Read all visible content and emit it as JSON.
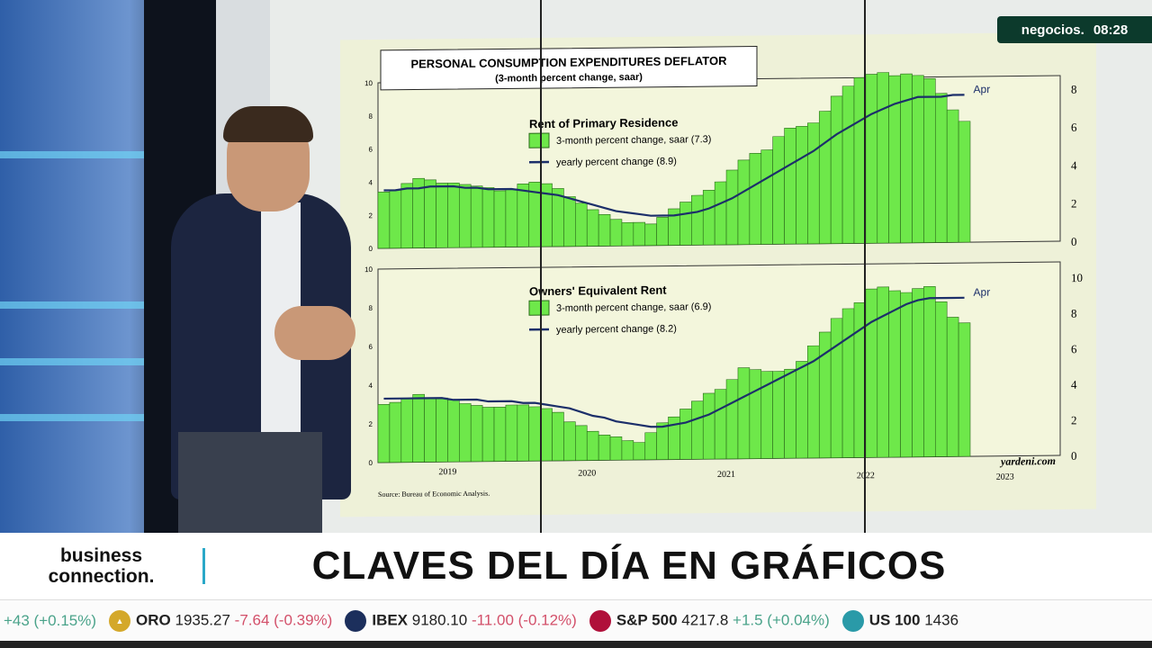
{
  "logo": {
    "channel": "negocios.",
    "time": "08:28"
  },
  "lower_third": {
    "brand_line1": "business",
    "brand_line2": "connection.",
    "headline": "CLAVES DEL DÍA EN GRÁFICOS"
  },
  "ticker": [
    {
      "name": "",
      "value": "",
      "change": "+43 (+0.15%)",
      "direction": "up",
      "icon": "",
      "color": ""
    },
    {
      "name": "ORO",
      "value": "1935.27",
      "change": "-7.64 (-0.39%)",
      "direction": "down",
      "icon": "gold-icon",
      "color": "#d4a82a"
    },
    {
      "name": "IBEX",
      "value": "9180.10",
      "change": "-11.00 (-0.12%)",
      "direction": "down",
      "icon": "35",
      "color": "#1c2f5c"
    },
    {
      "name": "S&P 500",
      "value": "4217.8",
      "change": "+1.5 (+0.04%)",
      "direction": "up",
      "icon": "500",
      "color": "#b0103a"
    },
    {
      "name": "US 100",
      "value": "1436",
      "change": "",
      "direction": "",
      "icon": "100",
      "color": "#2a9aa8"
    }
  ],
  "chart_data": [
    {
      "type": "bar",
      "title": "PERSONAL CONSUMPTION EXPENDITURES DEFLATOR",
      "subtitle": "(3-month percent change, saar)",
      "panel_title": "Rent of Primary Residence",
      "legend": [
        "3-month percent change, saar (7.3)",
        "yearly percent change (8.9)"
      ],
      "end_label": "Apr",
      "ylim": [
        0,
        10
      ],
      "left_ticks": [
        "0",
        "2",
        "4",
        "6",
        "8",
        "10"
      ],
      "right_ticks": [
        "0",
        "2",
        "4",
        "6",
        "8"
      ],
      "bar_color": "#6ee84a",
      "line_color": "#1c2f6a",
      "bars": [
        3.4,
        3.5,
        3.9,
        4.2,
        4.1,
        3.9,
        3.9,
        3.8,
        3.7,
        3.6,
        3.4,
        3.5,
        3.8,
        3.9,
        3.8,
        3.5,
        3.0,
        2.6,
        2.2,
        1.9,
        1.6,
        1.4,
        1.4,
        1.3,
        1.7,
        2.2,
        2.6,
        3.0,
        3.3,
        3.8,
        4.5,
        5.1,
        5.5,
        5.7,
        6.5,
        7.0,
        7.1,
        7.3,
        8.0,
        8.9,
        9.5,
        10.0,
        10.2,
        10.3,
        10.1,
        10.2,
        10.1,
        9.9,
        9.0,
        8.0,
        7.3
      ],
      "line": [
        3.5,
        3.5,
        3.6,
        3.6,
        3.7,
        3.7,
        3.7,
        3.6,
        3.6,
        3.5,
        3.5,
        3.5,
        3.4,
        3.3,
        3.2,
        3.1,
        2.9,
        2.7,
        2.5,
        2.3,
        2.1,
        2.0,
        1.9,
        1.8,
        1.8,
        1.8,
        1.9,
        2.0,
        2.2,
        2.5,
        2.8,
        3.2,
        3.6,
        4.0,
        4.4,
        4.8,
        5.2,
        5.6,
        6.1,
        6.6,
        7.0,
        7.4,
        7.8,
        8.1,
        8.4,
        8.6,
        8.8,
        8.8,
        8.8,
        8.9,
        8.9
      ]
    },
    {
      "type": "bar",
      "panel_title": "Owners' Equivalent Rent",
      "legend": [
        "3-month percent change, saar (6.9)",
        "yearly percent change (8.2)"
      ],
      "end_label": "Apr",
      "ylim": [
        0,
        10
      ],
      "left_ticks": [
        "0",
        "2",
        "4",
        "6",
        "8",
        "10"
      ],
      "right_ticks": [
        "0",
        "2",
        "4",
        "6",
        "8",
        "10"
      ],
      "x_ticks": [
        "2019",
        "2020",
        "2021",
        "2022",
        "2023"
      ],
      "source": "Source: Bureau of Economic Analysis.",
      "credit": "yardeni.com",
      "bar_color": "#6ee84a",
      "line_color": "#1c2f6a",
      "bars": [
        3.0,
        3.1,
        3.3,
        3.5,
        3.3,
        3.3,
        3.2,
        3.0,
        2.9,
        2.8,
        2.8,
        2.9,
        2.9,
        2.8,
        2.7,
        2.5,
        2.0,
        1.8,
        1.5,
        1.3,
        1.2,
        1.0,
        0.9,
        1.4,
        1.9,
        2.2,
        2.6,
        3.0,
        3.4,
        3.6,
        4.1,
        4.7,
        4.6,
        4.5,
        4.5,
        4.6,
        5.0,
        5.8,
        6.5,
        7.2,
        7.7,
        8.0,
        8.7,
        8.8,
        8.6,
        8.5,
        8.7,
        8.8,
        8.0,
        7.2,
        6.9
      ],
      "line": [
        3.3,
        3.3,
        3.3,
        3.3,
        3.3,
        3.3,
        3.2,
        3.2,
        3.2,
        3.1,
        3.1,
        3.1,
        3.0,
        3.0,
        2.9,
        2.8,
        2.7,
        2.5,
        2.3,
        2.2,
        2.0,
        1.9,
        1.8,
        1.7,
        1.7,
        1.8,
        1.9,
        2.1,
        2.3,
        2.6,
        2.9,
        3.2,
        3.5,
        3.8,
        4.1,
        4.4,
        4.7,
        5.0,
        5.4,
        5.8,
        6.2,
        6.6,
        7.0,
        7.3,
        7.6,
        7.9,
        8.1,
        8.2,
        8.2,
        8.2,
        8.2
      ]
    }
  ]
}
